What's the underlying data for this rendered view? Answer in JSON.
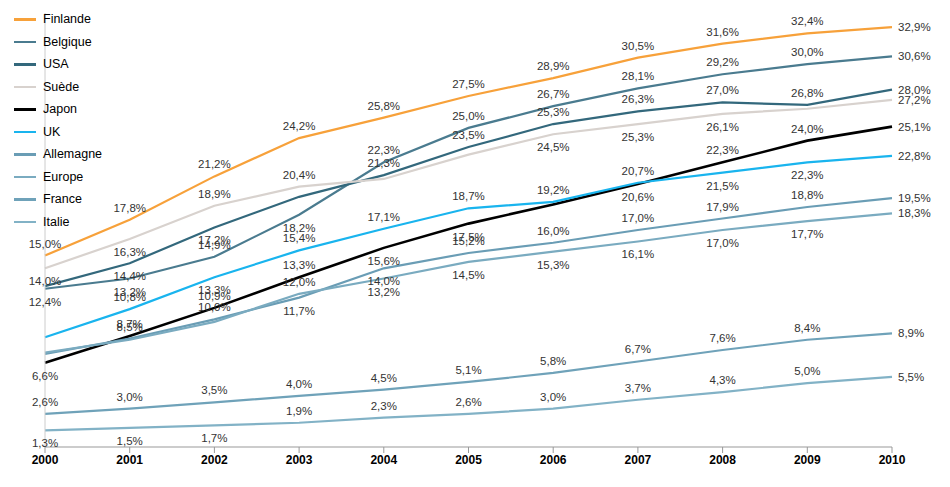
{
  "chart_data": {
    "type": "line",
    "categories": [
      "2000",
      "2001",
      "2002",
      "2003",
      "2004",
      "2005",
      "2006",
      "2007",
      "2008",
      "2009",
      "2010"
    ],
    "ylim": [
      0,
      34
    ],
    "tick_labels": "x",
    "grid": false,
    "legend": "upper left",
    "data_labels": true,
    "series": [
      {
        "name": "Finlande",
        "color": "#f7a13a",
        "values": [
          15.0,
          17.8,
          21.2,
          24.2,
          25.8,
          27.5,
          28.9,
          30.5,
          31.6,
          32.4,
          32.9
        ],
        "value_labels": [
          "15,0%",
          "17,8%",
          "21,2%",
          "24,2%",
          "25,8%",
          "27,5%",
          "28,9%",
          "30,5%",
          "31,6%",
          "32,4%",
          "32,9%"
        ]
      },
      {
        "name": "Belgique",
        "color": "#4a7b8f",
        "values": [
          12.4,
          13.2,
          14.9,
          18.2,
          22.3,
          25.0,
          26.7,
          28.1,
          29.2,
          30.0,
          30.6
        ],
        "value_labels": [
          "12,4%",
          "13,2%",
          "14,9%",
          "18,2%",
          "22,3%",
          "25,0%",
          "26,7%",
          "28,1%",
          "29,2%",
          "30,0%",
          "30,6%"
        ]
      },
      {
        "name": "USA",
        "color": "#33687c",
        "values": [
          12.6,
          14.4,
          17.2,
          19.6,
          21.3,
          23.5,
          25.3,
          26.3,
          27.0,
          26.8,
          28.0
        ],
        "value_labels": [
          null,
          "14,4%",
          "17,2%",
          null,
          "21,3%",
          "23,5%",
          "25,3%",
          "26,3%",
          "27,0%",
          "26,8%",
          "28,0%"
        ]
      },
      {
        "name": "Suède",
        "color": "#d8d2ce",
        "values": [
          14.0,
          16.3,
          18.9,
          20.4,
          21.0,
          22.9,
          24.5,
          25.3,
          26.1,
          26.5,
          27.2
        ],
        "value_labels": [
          "14,0%",
          "16,3%",
          "18,9%",
          "20,4%",
          null,
          null,
          "24,5%",
          "25,3%",
          "26,1%",
          null,
          "27,2%"
        ]
      },
      {
        "name": "Japon",
        "color": "#000000",
        "values": [
          6.6,
          8.7,
          10.9,
          13.3,
          15.6,
          17.5,
          19.0,
          20.6,
          22.3,
          24.0,
          25.1
        ],
        "value_labels": [
          "6,6%",
          "8,7%",
          "10,9%",
          "13,3%",
          "15,6%",
          "17,5%",
          null,
          "20,6%",
          "22,3%",
          "24,0%",
          "25,1%"
        ]
      },
      {
        "name": "UK",
        "color": "#19b4ee",
        "values": [
          8.6,
          10.8,
          13.3,
          15.4,
          17.1,
          18.7,
          19.2,
          20.7,
          21.5,
          22.3,
          22.8
        ],
        "value_labels": [
          null,
          "10,8%",
          "13,3%",
          "15,4%",
          "17,1%",
          "18,7%",
          "19,2%",
          "20,7%",
          "21,5%",
          "22,3%",
          "22,8%"
        ]
      },
      {
        "name": "Allemagne",
        "color": "#6a9db5",
        "values": [
          7.3,
          8.5,
          10.0,
          11.7,
          14.0,
          15.2,
          16.0,
          17.0,
          17.9,
          18.8,
          19.5
        ],
        "value_labels": [
          null,
          "8,5%",
          "10,0%",
          "11,7%",
          "14,0%",
          "15,2%",
          "16,0%",
          "17,0%",
          "17,9%",
          "18,8%",
          "19,5%"
        ]
      },
      {
        "name": "Europe",
        "color": "#7aabc0",
        "values": [
          7.4,
          8.4,
          9.8,
          12.0,
          13.2,
          14.5,
          15.3,
          16.1,
          17.0,
          17.7,
          18.3
        ],
        "value_labels": [
          null,
          null,
          null,
          "12,0%",
          "13,2%",
          "14,5%",
          "15,3%",
          "16,1%",
          "17,0%",
          "17,7%",
          "18,3%"
        ]
      },
      {
        "name": "France",
        "color": "#6fa2b9",
        "values": [
          2.6,
          3.0,
          3.5,
          4.0,
          4.5,
          5.1,
          5.8,
          6.7,
          7.6,
          8.4,
          8.9
        ],
        "value_labels": [
          "2,6%",
          "3,0%",
          "3,5%",
          "4,0%",
          "4,5%",
          "5,1%",
          "5,8%",
          "6,7%",
          "7,6%",
          "8,4%",
          "8,9%"
        ]
      },
      {
        "name": "Italie",
        "color": "#82b2c6",
        "values": [
          1.3,
          1.5,
          1.7,
          1.9,
          2.3,
          2.6,
          3.0,
          3.7,
          4.3,
          5.0,
          5.5
        ],
        "value_labels": [
          "1,3%",
          "1,5%",
          "1,7%",
          "1,9%",
          "2,3%",
          "2,6%",
          "3,0%",
          "3,7%",
          "4,3%",
          "5,0%",
          "5,5%"
        ]
      }
    ]
  }
}
